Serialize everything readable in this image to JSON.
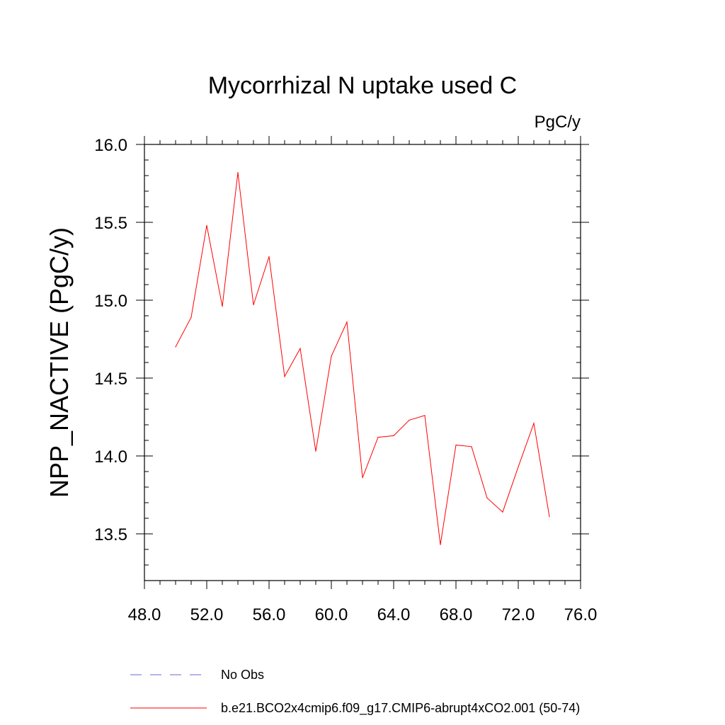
{
  "chart_data": {
    "type": "line",
    "title": "Mycorrhizal N uptake used C",
    "units_label": "PgC/y",
    "xlabel": "",
    "ylabel": "NPP_NACTIVE  (PgC/y)",
    "xlim": [
      48.0,
      76.0
    ],
    "ylim": [
      13.2,
      16.0
    ],
    "xticks": [
      "48.0",
      "52.0",
      "56.0",
      "60.0",
      "64.0",
      "68.0",
      "72.0",
      "76.0"
    ],
    "yticks": [
      "13.5",
      "14.0",
      "14.5",
      "15.0",
      "15.5",
      "16.0"
    ],
    "grid": false,
    "legend_position": "bottom",
    "series": [
      {
        "name": "b.e21.BCO2x4cmip6.f09_g17.CMIP6-abrupt4xCO2.001 (50-74)",
        "color": "#ff0000",
        "style": "solid",
        "x": [
          50,
          51,
          52,
          53,
          54,
          55,
          56,
          57,
          58,
          59,
          60,
          61,
          62,
          63,
          64,
          65,
          66,
          67,
          68,
          69,
          70,
          71,
          72,
          73,
          74
        ],
        "values": [
          14.7,
          14.89,
          15.48,
          14.96,
          15.82,
          14.97,
          15.28,
          14.51,
          14.69,
          14.03,
          14.64,
          14.86,
          13.86,
          14.12,
          14.13,
          14.23,
          14.26,
          13.43,
          14.07,
          14.06,
          13.73,
          13.64,
          13.93,
          14.21,
          13.61
        ]
      },
      {
        "name": "No Obs",
        "color": "#6a6ad8",
        "style": "dashed",
        "x": [],
        "values": []
      }
    ]
  }
}
